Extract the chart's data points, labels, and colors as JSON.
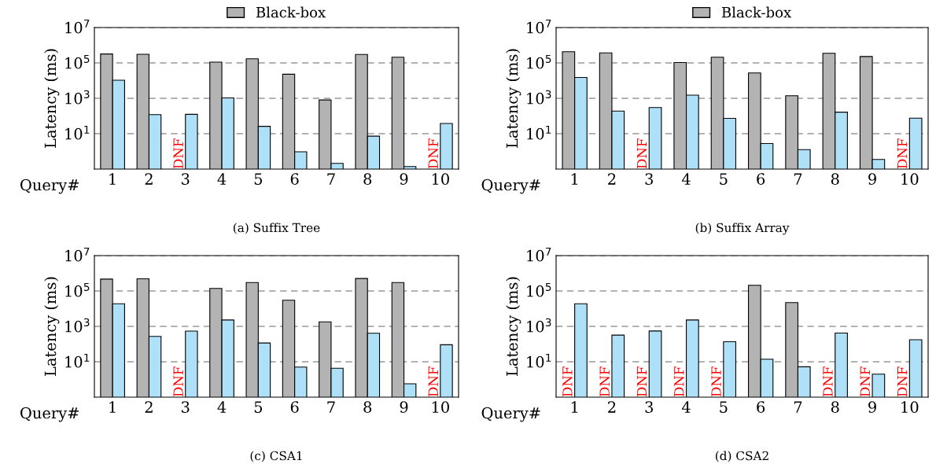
{
  "chart_data": [
    {
      "type": "bar",
      "title": "(a) Suffix Tree",
      "xlabel": "Query#",
      "ylabel": "Latency (ms)",
      "categories": [
        "1",
        "2",
        "3",
        "4",
        "5",
        "6",
        "7",
        "8",
        "9",
        "10"
      ],
      "log": true,
      "ylim": [
        0.1,
        10000000
      ],
      "yticks": [
        {
          "value": 10,
          "label": "10$^{1}$"
        },
        {
          "value": 1000,
          "label": "10$^{3}$"
        },
        {
          "value": 100000,
          "label": "10$^{5}$"
        },
        {
          "value": 10000000,
          "label": "10$^{7}$"
        }
      ],
      "grid": "y",
      "legend": "top",
      "series": [
        {
          "name": "Black-box",
          "color": "#b3b3b3",
          "values": [
            320000,
            310000,
            null,
            110000,
            170000,
            23000,
            800,
            300000,
            210000,
            null
          ]
        },
        {
          "color": "#aee0f8",
          "values": [
            10500,
            120,
            125,
            1050,
            26,
            0.95,
            0.21,
            7.3,
            0.14,
            38
          ]
        }
      ],
      "annotations": [
        {
          "text": "DNF",
          "x": "3"
        },
        {
          "text": "DNF",
          "x": "10"
        }
      ]
    },
    {
      "type": "bar",
      "title": "(b) Suffix Array",
      "xlabel": "Query#",
      "ylabel": "Latency (ms)",
      "categories": [
        "1",
        "2",
        "3",
        "4",
        "5",
        "6",
        "7",
        "8",
        "9",
        "10"
      ],
      "log": true,
      "ylim": [
        0.1,
        10000000
      ],
      "yticks": [
        {
          "value": 10,
          "label": "10$^{1}$"
        },
        {
          "value": 1000,
          "label": "10$^{3}$"
        },
        {
          "value": 100000,
          "label": "10$^{5}$"
        },
        {
          "value": 10000000,
          "label": "10$^{7}$"
        }
      ],
      "grid": "y",
      "legend": "top",
      "series": [
        {
          "name": "Black-box",
          "color": "#b3b3b3",
          "values": [
            430000,
            370000,
            null,
            105000,
            210000,
            27000,
            1400,
            350000,
            230000,
            null
          ]
        },
        {
          "color": "#aee0f8",
          "values": [
            15000,
            190,
            300,
            1500,
            74,
            2.8,
            1.26,
            165,
            0.35,
            76
          ]
        }
      ],
      "annotations": [
        {
          "text": "DNF",
          "x": "3"
        },
        {
          "text": "DNF",
          "x": "10"
        }
      ]
    },
    {
      "type": "bar",
      "title": "(c) CSA1",
      "xlabel": "Query#",
      "ylabel": "Latency (ms)",
      "categories": [
        "1",
        "2",
        "3",
        "4",
        "5",
        "6",
        "7",
        "8",
        "9",
        "10"
      ],
      "log": true,
      "ylim": [
        0.1,
        10000000
      ],
      "yticks": [
        {
          "value": 10,
          "label": "10$^{1}$"
        },
        {
          "value": 1000,
          "label": "10$^{3}$"
        },
        {
          "value": 100000,
          "label": "10$^{5}$"
        },
        {
          "value": 10000000,
          "label": "10$^{7}$"
        }
      ],
      "grid": "y",
      "series": [
        {
          "color": "#b3b3b3",
          "values": [
            470000,
            490000,
            null,
            140000,
            300000,
            30000,
            1800,
            510000,
            300000,
            null
          ]
        },
        {
          "color": "#aee0f8",
          "values": [
            19000,
            270,
            540,
            2300,
            115,
            5,
            4.3,
            410,
            0.57,
            91
          ]
        }
      ],
      "annotations": [
        {
          "text": "DNF",
          "x": "3"
        },
        {
          "text": "DNF",
          "x": "10"
        }
      ]
    },
    {
      "type": "bar",
      "title": "(d) CSA2",
      "xlabel": "Query#",
      "ylabel": "Latency (ms)",
      "categories": [
        "1",
        "2",
        "3",
        "4",
        "5",
        "6",
        "7",
        "8",
        "9",
        "10"
      ],
      "log": true,
      "ylim": [
        0.1,
        10000000
      ],
      "yticks": [
        {
          "value": 10,
          "label": "10$^{1}$"
        },
        {
          "value": 1000,
          "label": "10$^{3}$"
        },
        {
          "value": 100000,
          "label": "10$^{5}$"
        },
        {
          "value": 10000000,
          "label": "10$^{7}$"
        }
      ],
      "grid": "y",
      "series": [
        {
          "color": "#b3b3b3",
          "values": [
            null,
            null,
            null,
            null,
            null,
            210000,
            22000,
            null,
            null,
            null
          ]
        },
        {
          "color": "#aee0f8",
          "values": [
            19000,
            320,
            550,
            2300,
            135,
            14,
            5.2,
            420,
            2,
            175
          ]
        }
      ],
      "annotations": [
        {
          "text": "DNF",
          "x": "1"
        },
        {
          "text": "DNF",
          "x": "2"
        },
        {
          "text": "DNF",
          "x": "3"
        },
        {
          "text": "DNF",
          "x": "4"
        },
        {
          "text": "DNF",
          "x": "5"
        },
        {
          "text": "DNF",
          "x": "8"
        },
        {
          "text": "DNF",
          "x": "9"
        },
        {
          "text": "DNF",
          "x": "10"
        }
      ]
    }
  ]
}
